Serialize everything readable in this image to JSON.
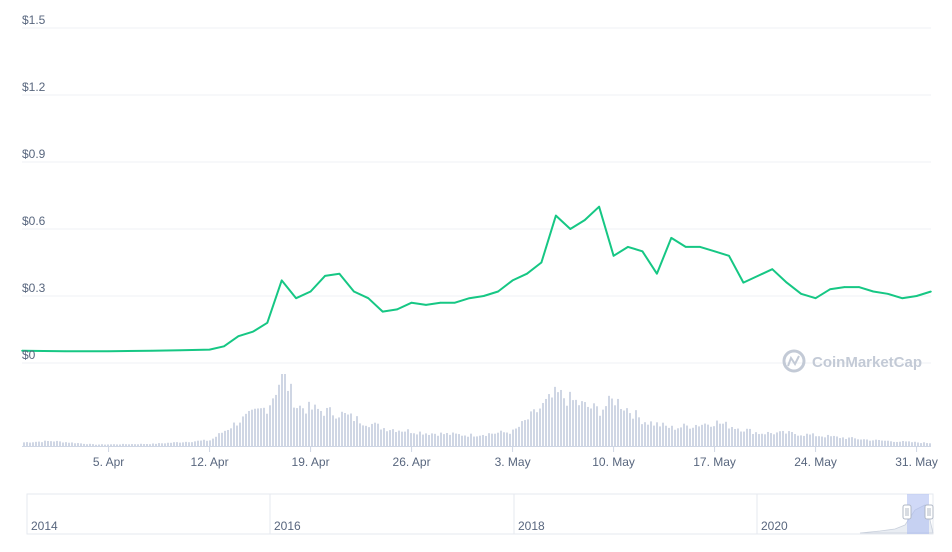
{
  "chart_data": {
    "type": "line",
    "title": "",
    "xlabel": "",
    "ylabel": "",
    "y_ticks": [
      "$0",
      "$0.3",
      "$0.6",
      "$0.9",
      "$1.2",
      "$1.5"
    ],
    "y_tick_values": [
      0,
      0.3,
      0.6,
      0.9,
      1.2,
      1.5
    ],
    "ylim": [
      0,
      1.5
    ],
    "x_range": [
      "2021-03-30",
      "2021-06-01"
    ],
    "x_ticks": [
      {
        "label": "5. Apr",
        "date": "2021-04-05"
      },
      {
        "label": "12. Apr",
        "date": "2021-04-12"
      },
      {
        "label": "19. Apr",
        "date": "2021-04-19"
      },
      {
        "label": "26. Apr",
        "date": "2021-04-26"
      },
      {
        "label": "3. May",
        "date": "2021-05-03"
      },
      {
        "label": "10. May",
        "date": "2021-05-10"
      },
      {
        "label": "17. May",
        "date": "2021-05-17"
      },
      {
        "label": "24. May",
        "date": "2021-05-24"
      },
      {
        "label": "31. May",
        "date": "2021-05-31"
      }
    ],
    "grid": true,
    "line_color": "#16c784",
    "volume_color": "#cfd6e4",
    "price_series": {
      "x": [
        "2021-03-30",
        "2021-04-02",
        "2021-04-05",
        "2021-04-08",
        "2021-04-10",
        "2021-04-12",
        "2021-04-13",
        "2021-04-14",
        "2021-04-15",
        "2021-04-16",
        "2021-04-17",
        "2021-04-18",
        "2021-04-19",
        "2021-04-20",
        "2021-04-21",
        "2021-04-22",
        "2021-04-23",
        "2021-04-24",
        "2021-04-25",
        "2021-04-26",
        "2021-04-27",
        "2021-04-28",
        "2021-04-29",
        "2021-04-30",
        "2021-05-01",
        "2021-05-02",
        "2021-05-03",
        "2021-05-04",
        "2021-05-05",
        "2021-05-06",
        "2021-05-07",
        "2021-05-08",
        "2021-05-09",
        "2021-05-10",
        "2021-05-11",
        "2021-05-12",
        "2021-05-13",
        "2021-05-14",
        "2021-05-15",
        "2021-05-16",
        "2021-05-17",
        "2021-05-18",
        "2021-05-19",
        "2021-05-20",
        "2021-05-21",
        "2021-05-22",
        "2021-05-23",
        "2021-05-24",
        "2021-05-25",
        "2021-05-26",
        "2021-05-27",
        "2021-05-28",
        "2021-05-29",
        "2021-05-30",
        "2021-05-31",
        "2021-06-01"
      ],
      "y": [
        0.055,
        0.053,
        0.053,
        0.055,
        0.057,
        0.06,
        0.075,
        0.12,
        0.14,
        0.18,
        0.37,
        0.29,
        0.32,
        0.39,
        0.4,
        0.32,
        0.29,
        0.23,
        0.24,
        0.27,
        0.26,
        0.27,
        0.27,
        0.29,
        0.3,
        0.32,
        0.37,
        0.4,
        0.45,
        0.66,
        0.6,
        0.64,
        0.7,
        0.48,
        0.52,
        0.5,
        0.4,
        0.56,
        0.52,
        0.52,
        0.5,
        0.48,
        0.36,
        0.39,
        0.42,
        0.36,
        0.31,
        0.29,
        0.33,
        0.34,
        0.34,
        0.32,
        0.31,
        0.29,
        0.3,
        0.32
      ]
    },
    "volume_series": {
      "x": [
        "2021-03-30",
        "2021-04-01",
        "2021-04-04",
        "2021-04-08",
        "2021-04-12",
        "2021-04-14",
        "2021-04-16",
        "2021-04-17",
        "2021-04-18",
        "2021-04-20",
        "2021-04-21",
        "2021-04-22",
        "2021-04-24",
        "2021-04-27",
        "2021-04-30",
        "2021-05-03",
        "2021-05-05",
        "2021-05-06",
        "2021-05-08",
        "2021-05-09",
        "2021-05-10",
        "2021-05-12",
        "2021-05-14",
        "2021-05-17",
        "2021-05-20",
        "2021-05-22",
        "2021-05-25",
        "2021-05-28",
        "2021-06-01"
      ],
      "y": [
        0.05,
        0.07,
        0.02,
        0.03,
        0.08,
        0.35,
        0.55,
        1.0,
        0.55,
        0.48,
        0.45,
        0.38,
        0.25,
        0.18,
        0.15,
        0.2,
        0.55,
        0.72,
        0.55,
        0.5,
        0.65,
        0.35,
        0.25,
        0.33,
        0.18,
        0.18,
        0.13,
        0.08,
        0.04
      ]
    },
    "navigator": {
      "labels": [
        "2014",
        "2016",
        "2018",
        "2020"
      ]
    },
    "watermark": "CoinMarketCap"
  }
}
